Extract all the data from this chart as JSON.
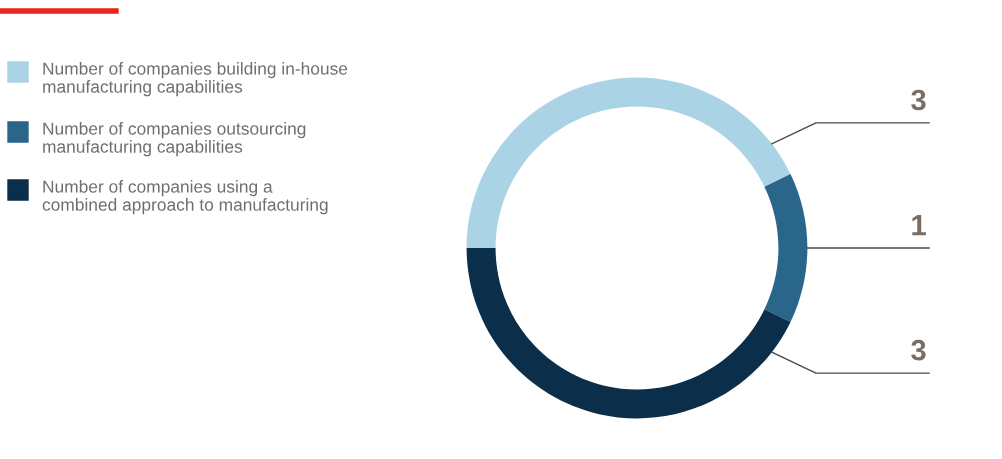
{
  "chart_data": {
    "type": "donut",
    "categories": [
      "Number of companies building in-house\nmanufacturing capabilities",
      "Number of companies outsourcing\nmanufacturing capabilities",
      "Number of companies using a\ncombined approach to manufacturing"
    ],
    "values": [
      3,
      1,
      3
    ],
    "colors": [
      "#aad3e6",
      "#29668a",
      "#0b2f4b"
    ],
    "data_labels": true,
    "legend": "top left"
  }
}
